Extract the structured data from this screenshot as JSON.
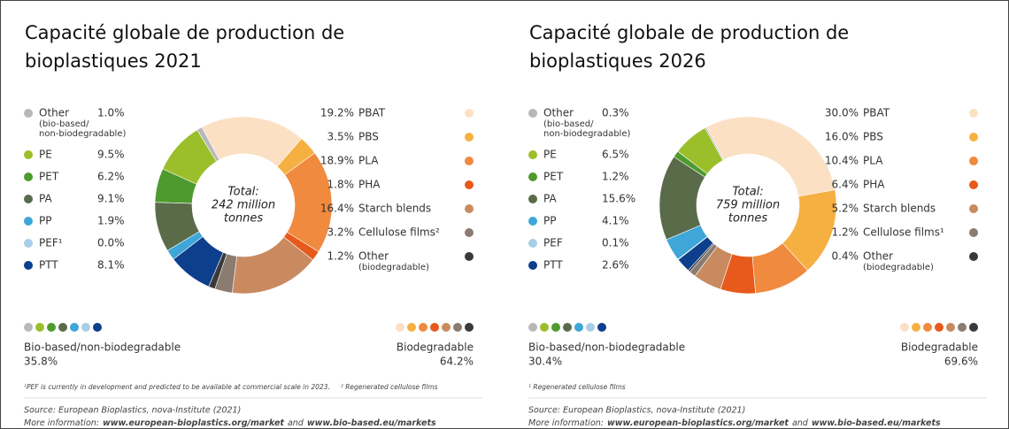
{
  "chart_data": [
    {
      "type": "pie",
      "donut": true,
      "title": [
        "Capacité globale de production de",
        "bioplastiques 2021"
      ],
      "center_label": [
        "Total:",
        "242 million",
        "tonnes"
      ],
      "groups": [
        {
          "name": "Bio-based/non-biodegradable",
          "value": 35.8,
          "value_label": "35.8%",
          "items": [
            {
              "name": "Other",
              "note": [
                "(bio-based/",
                "non-biodegradable)"
              ],
              "value": 1.0,
              "value_label": "1.0%",
              "color": "#b8b8b8"
            },
            {
              "name": "PE",
              "value": 9.5,
              "value_label": "9.5%",
              "color": "#9bbf2a"
            },
            {
              "name": "PET",
              "value": 6.2,
              "value_label": "6.2%",
              "color": "#4e9a2e"
            },
            {
              "name": "PA",
              "value": 9.1,
              "value_label": "9.1%",
              "color": "#5a6b4a"
            },
            {
              "name": "PP",
              "value": 1.9,
              "value_label": "1.9%",
              "color": "#3ea6d8"
            },
            {
              "name": "PEF¹",
              "value": 0,
              "value_label": "0.0%",
              "color": "#a8cde8"
            },
            {
              "name": "PTT",
              "value": 8.1,
              "value_label": "8.1%",
              "color": "#0d3f8c"
            }
          ]
        },
        {
          "name": "Biodegradable",
          "value": 64.2,
          "value_label": "64.2%",
          "items": [
            {
              "name": "PBAT",
              "value": 19.2,
              "value_label": "19.2%",
              "color": "#fbe0c4"
            },
            {
              "name": "PBS",
              "value": 3.5,
              "value_label": "3.5%",
              "color": "#f6b042"
            },
            {
              "name": "PLA",
              "value": 18.9,
              "value_label": "18.9%",
              "color": "#ef8a3e"
            },
            {
              "name": "PHA",
              "value": 1.8,
              "value_label": "1.8%",
              "color": "#e8591c"
            },
            {
              "name": "Starch blends",
              "value": 16.4,
              "value_label": "16.4%",
              "color": "#c98a60"
            },
            {
              "name": "Cellulose films²",
              "value": 3.2,
              "value_label": "3.2%",
              "color": "#8c7b70"
            },
            {
              "name": "Other",
              "note": [
                "(biodegradable)"
              ],
              "value": 1.2,
              "value_label": "1.2%",
              "color": "#3a3a3a"
            }
          ]
        }
      ],
      "footnotes": [
        "¹PEF is currently in development and predicted to be available at commercial scale in 2023.",
        "² Regenerated cellulose films"
      ],
      "source": "Source: European Bioplastics, nova-Institute (2021)",
      "more_info": [
        "More information:",
        "www.european-bioplastics.org/market",
        "and",
        "www.bio-based.eu/markets"
      ]
    },
    {
      "type": "pie",
      "donut": true,
      "title": [
        "Capacité globale de production de",
        "bioplastiques 2026"
      ],
      "center_label": [
        "Total:",
        "759 million",
        "tonnes"
      ],
      "groups": [
        {
          "name": "Bio-based/non-biodegradable",
          "value": 30.4,
          "value_label": "30.4%",
          "items": [
            {
              "name": "Other",
              "note": [
                "(bio-based/",
                "non-biodegradable)"
              ],
              "value": 0.3,
              "value_label": "0.3%",
              "color": "#b8b8b8"
            },
            {
              "name": "PE",
              "value": 6.5,
              "value_label": "6.5%",
              "color": "#9bbf2a"
            },
            {
              "name": "PET",
              "value": 1.2,
              "value_label": "1.2%",
              "color": "#4e9a2e"
            },
            {
              "name": "PA",
              "value": 15.6,
              "value_label": "15.6%",
              "color": "#5a6b4a"
            },
            {
              "name": "PP",
              "value": 4.1,
              "value_label": "4.1%",
              "color": "#3ea6d8"
            },
            {
              "name": "PEF",
              "value": 0.1,
              "value_label": "0.1%",
              "color": "#a8cde8"
            },
            {
              "name": "PTT",
              "value": 2.6,
              "value_label": "2.6%",
              "color": "#0d3f8c"
            }
          ]
        },
        {
          "name": "Biodegradable",
          "value": 69.6,
          "value_label": "69.6%",
          "items": [
            {
              "name": "PBAT",
              "value": 30.0,
              "value_label": "30.0%",
              "color": "#fbe0c4"
            },
            {
              "name": "PBS",
              "value": 16.0,
              "value_label": "16.0%",
              "color": "#f6b042"
            },
            {
              "name": "PLA",
              "value": 10.4,
              "value_label": "10.4%",
              "color": "#ef8a3e"
            },
            {
              "name": "PHA",
              "value": 6.4,
              "value_label": "6.4%",
              "color": "#e8591c"
            },
            {
              "name": "Starch blends",
              "value": 5.2,
              "value_label": "5.2%",
              "color": "#c98a60"
            },
            {
              "name": "Cellulose films¹",
              "value": 1.2,
              "value_label": "1.2%",
              "color": "#8c7b70"
            },
            {
              "name": "Other",
              "note": [
                "(biodegradable)"
              ],
              "value": 0.4,
              "value_label": "0.4%",
              "color": "#3a3a3a"
            }
          ]
        }
      ],
      "footnotes": [
        "¹ Regenerated cellulose films"
      ],
      "source": "Source: European Bioplastics, nova-Institute (2021)",
      "more_info": [
        "More information:",
        "www.european-bioplastics.org/market",
        "and",
        "www.bio-based.eu/markets"
      ]
    }
  ]
}
